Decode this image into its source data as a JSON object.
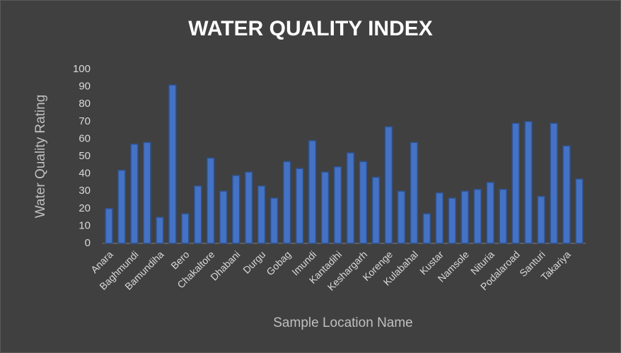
{
  "chart_data": {
    "type": "bar",
    "title": "WATER QUALITY INDEX",
    "x_label": "Sample Location Name",
    "y_label": "Water Quality Rating",
    "categories": [
      "Anara",
      null,
      "Baghmundi",
      null,
      "Bamundiha",
      null,
      "Bero",
      null,
      "Chakaltore",
      null,
      "Dhabani",
      null,
      "Durgu",
      null,
      "Gobag",
      null,
      "Imundi",
      null,
      "Kantadihi",
      null,
      "Keshargarh",
      null,
      "Korenge",
      null,
      "Kulabahal",
      null,
      "Kustar",
      null,
      "Namsole",
      null,
      "Nituria",
      null,
      "Podalaroad",
      null,
      "Santuri",
      null,
      "Takariya",
      null
    ],
    "values": [
      20,
      42,
      57,
      58,
      15,
      91,
      17,
      33,
      49,
      30,
      39,
      41,
      33,
      26,
      47,
      43,
      59,
      41,
      44,
      52,
      47,
      38,
      67,
      30,
      58,
      17,
      29,
      26,
      30,
      31,
      35,
      31,
      69,
      70,
      27,
      69,
      56,
      37
    ],
    "color": "#4472c4",
    "ylim": [
      0,
      100
    ],
    "yticks": [
      0,
      10,
      20,
      30,
      40,
      50,
      60,
      70,
      80,
      90,
      100
    ],
    "grid": false
  }
}
